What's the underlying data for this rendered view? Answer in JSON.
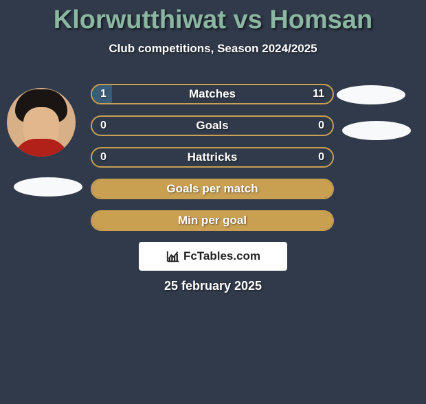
{
  "title": "Klorwutthiwat vs Homsan",
  "subtitle": "Club competitions, Season 2024/2025",
  "date": "25 february 2025",
  "brand": "FcTables.com",
  "colors": {
    "background": "#303a4a",
    "title": "#8bb6a2",
    "subtitle": "#ffffff",
    "bar_border": "#c9a052",
    "bar_fill_blue": "#3a5c78",
    "bar_fill_gold": "#c9a052",
    "text": "#ffffff"
  },
  "bars": [
    {
      "label": "Matches",
      "left": "1",
      "right": "11",
      "left_pct": 8.3
    },
    {
      "label": "Goals",
      "left": "0",
      "right": "0",
      "left_pct": 0
    },
    {
      "label": "Hattricks",
      "left": "0",
      "right": "0",
      "left_pct": 0
    },
    {
      "label": "Goals per match",
      "left": "",
      "right": "",
      "left_pct": 100,
      "full_gold": true
    },
    {
      "label": "Min per goal",
      "left": "",
      "right": "",
      "left_pct": 100,
      "full_gold": true
    }
  ]
}
